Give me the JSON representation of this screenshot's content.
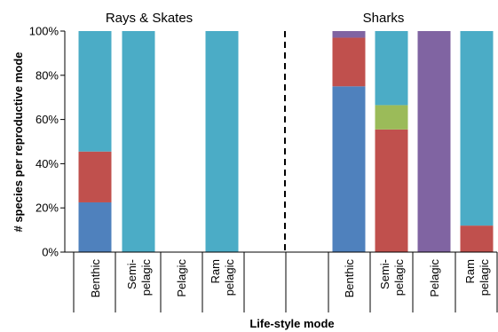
{
  "chart_data": {
    "type": "bar",
    "stacked": true,
    "xlabel": "Life-style mode",
    "ylabel": "# species per reproductive mode",
    "ylim": [
      0,
      100
    ],
    "y_ticks": [
      "0%",
      "20%",
      "40%",
      "60%",
      "80%",
      "100%"
    ],
    "grid": false,
    "legend": "none",
    "groups": [
      {
        "title": "Rays & Skates",
        "categories": [
          {
            "lines": [
              "Benthic"
            ],
            "segments": [
              22.5,
              23,
              0,
              54.5,
              0
            ]
          },
          {
            "lines": [
              "Semi-",
              "pelagic"
            ],
            "segments": [
              0,
              0,
              0,
              100,
              0
            ]
          },
          {
            "lines": [
              "Pelagic"
            ],
            "segments": [
              0,
              0,
              0,
              0,
              0
            ]
          },
          {
            "lines": [
              "Ram",
              "pelagic"
            ],
            "segments": [
              0,
              0,
              0,
              100,
              0
            ]
          }
        ]
      },
      {
        "title": "Sharks",
        "categories": [
          {
            "lines": [
              "Benthic"
            ],
            "segments": [
              75,
              22,
              0,
              0,
              3
            ]
          },
          {
            "lines": [
              "Semi-",
              "pelagic"
            ],
            "segments": [
              0,
              55.5,
              11,
              33.5,
              0
            ]
          },
          {
            "lines": [
              "Pelagic"
            ],
            "segments": [
              0,
              0,
              0,
              0,
              100
            ]
          },
          {
            "lines": [
              "Ram",
              "pelagic"
            ],
            "segments": [
              0,
              12,
              0,
              88,
              0
            ]
          }
        ]
      }
    ],
    "segment_order_bottom_to_top": [
      "blue",
      "red",
      "green",
      "teal",
      "purple"
    ],
    "segment_colors": [
      "#4f81bd",
      "#c0504d",
      "#9bbb59",
      "#4bacc6",
      "#8064a2"
    ],
    "bar_order_note": "",
    "divider": "dashed"
  }
}
